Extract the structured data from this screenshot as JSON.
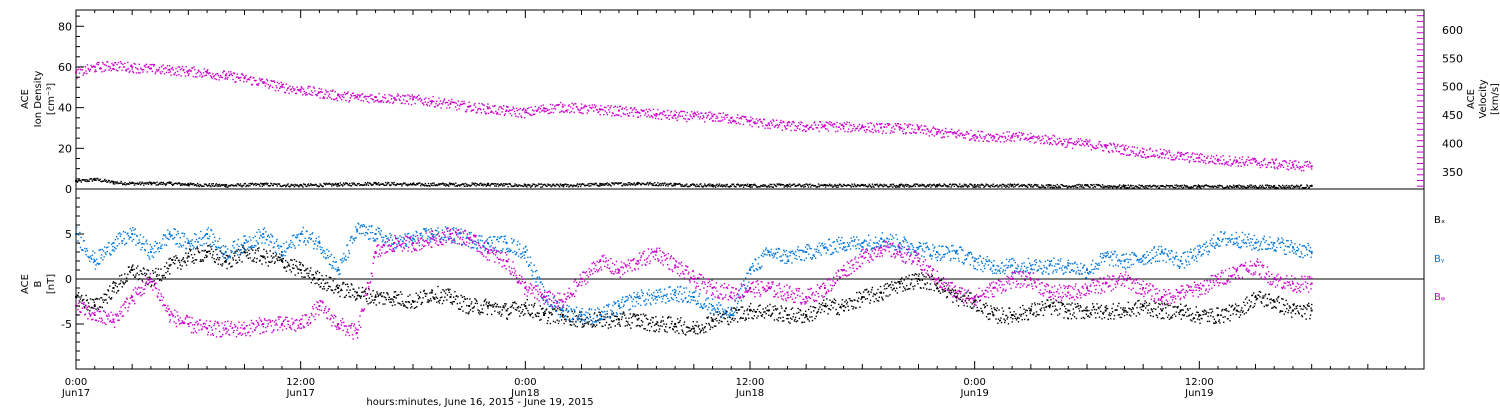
{
  "colors": {
    "density": "#000000",
    "velocity": "#cc00cc",
    "bx": "#000000",
    "by": "#0077dd",
    "bz": "#cc00cc"
  },
  "chart_data": [
    {
      "type": "scatter",
      "panel": "plasma",
      "time_range_hours": [
        0,
        72
      ],
      "left_axis": {
        "label_lines": [
          "ACE",
          "Ion Density",
          "[cm⁻³]"
        ],
        "ylim": [
          0,
          88
        ],
        "ticks": [
          "0",
          "20",
          "40",
          "60",
          "80"
        ]
      },
      "right_axis": {
        "label_lines": [
          "ACE",
          "Velocity",
          "[km/s]"
        ],
        "ylim": [
          320,
          635
        ],
        "ticks": [
          "350",
          "400",
          "450",
          "500",
          "550",
          "600"
        ]
      },
      "series": [
        {
          "key": "density",
          "axis": "left",
          "x": [
            0,
            1,
            2,
            3,
            4,
            5,
            6,
            8,
            10,
            12,
            14,
            16,
            18,
            20,
            22,
            24,
            26,
            28,
            30,
            32,
            34,
            36,
            38,
            40,
            42,
            44,
            46,
            48,
            50,
            52,
            54,
            56,
            58,
            60,
            62,
            64,
            66
          ],
          "y": [
            4,
            5,
            3.5,
            3,
            3,
            3,
            2.5,
            2,
            2.5,
            2,
            2.5,
            3,
            2.5,
            2.5,
            2.5,
            2,
            2,
            2.5,
            3,
            2.5,
            2,
            2,
            2,
            2,
            2,
            2,
            2,
            2,
            2,
            1.8,
            1.8,
            1.5,
            1.5,
            1.5,
            1.5,
            1.5,
            1.5
          ]
        },
        {
          "key": "velocity",
          "axis": "right",
          "x": [
            0,
            1,
            2,
            3,
            4,
            5,
            6,
            7,
            8,
            9,
            10,
            11,
            12,
            13,
            14,
            15,
            16,
            17,
            18,
            19,
            20,
            21,
            22,
            23,
            24,
            25,
            26,
            27,
            28,
            29,
            30,
            31,
            32,
            33,
            34,
            35,
            36,
            37,
            38,
            39,
            40,
            41,
            42,
            43,
            44,
            45,
            46,
            47,
            48,
            49,
            50,
            51,
            52,
            53,
            54,
            55,
            56,
            57,
            58,
            59,
            60,
            61,
            62,
            63,
            64,
            65,
            66
          ],
          "y": [
            525,
            535,
            538,
            535,
            532,
            530,
            528,
            525,
            520,
            515,
            508,
            500,
            495,
            490,
            485,
            482,
            482,
            480,
            478,
            475,
            470,
            465,
            462,
            458,
            455,
            462,
            465,
            462,
            460,
            458,
            455,
            452,
            450,
            448,
            448,
            445,
            440,
            435,
            432,
            430,
            432,
            430,
            430,
            428,
            428,
            425,
            420,
            418,
            415,
            413,
            413,
            410,
            408,
            402,
            400,
            395,
            390,
            385,
            382,
            378,
            375,
            372,
            370,
            368,
            365,
            363,
            360
          ]
        }
      ]
    },
    {
      "type": "scatter",
      "panel": "magnetic",
      "time_range_hours": [
        0,
        72
      ],
      "left_axis": {
        "label_lines": [
          "ACE",
          "B",
          "[nT]"
        ],
        "ylim": [
          -10,
          10
        ],
        "ticks": [
          "-5",
          "0",
          "5"
        ]
      },
      "series": [
        {
          "key": "bx",
          "name": "Bₓ",
          "x": [
            0,
            1,
            2,
            3,
            4,
            5,
            6,
            7,
            8,
            9,
            10,
            11,
            12,
            13,
            14,
            15,
            16,
            17,
            18,
            19,
            20,
            21,
            22,
            23,
            24,
            25,
            26,
            27,
            28,
            29,
            30,
            31,
            32,
            33,
            34,
            35,
            36,
            37,
            38,
            39,
            40,
            41,
            42,
            43,
            44,
            45,
            46,
            47,
            48,
            49,
            50,
            51,
            52,
            53,
            54,
            55,
            56,
            57,
            58,
            59,
            60,
            61,
            62,
            63,
            64,
            65,
            66
          ],
          "y": [
            -2,
            -3,
            -1,
            1,
            0,
            1.5,
            2.5,
            3,
            2,
            3,
            2.5,
            2,
            1,
            0,
            -1,
            -1.5,
            -2,
            -2,
            -2.5,
            -1.5,
            -2,
            -3,
            -3,
            -3.5,
            -3,
            -4,
            -4,
            -4.5,
            -4.5,
            -4.5,
            -4.5,
            -5,
            -5,
            -5.5,
            -4.5,
            -4,
            -3.5,
            -3.5,
            -4,
            -4,
            -3,
            -3,
            -2,
            -1.5,
            -0.5,
            0,
            -0.5,
            -2,
            -2.5,
            -4,
            -4,
            -3.5,
            -3,
            -3.5,
            -3.5,
            -3.5,
            -3.5,
            -3,
            -3.5,
            -3.5,
            -4,
            -4,
            -3.5,
            -2,
            -2.5,
            -3.5,
            -3.5
          ]
        },
        {
          "key": "by",
          "name": "Bᵧ",
          "x": [
            0,
            1,
            2,
            3,
            4,
            5,
            6,
            7,
            8,
            9,
            10,
            11,
            12,
            13,
            14,
            15,
            16,
            17,
            18,
            19,
            20,
            21,
            22,
            23,
            24,
            25,
            26,
            27,
            28,
            29,
            30,
            31,
            32,
            33,
            34,
            35,
            36,
            37,
            38,
            39,
            40,
            41,
            42,
            43,
            44,
            45,
            46,
            47,
            48,
            49,
            50,
            51,
            52,
            53,
            54,
            55,
            56,
            57,
            58,
            59,
            60,
            61,
            62,
            63,
            64,
            65,
            66
          ],
          "y": [
            5,
            2,
            4,
            5,
            3,
            5,
            4,
            5,
            3,
            4,
            5,
            3,
            5,
            4,
            1,
            5.5,
            5,
            4,
            4.5,
            5,
            5,
            4.5,
            4,
            4,
            3,
            -2,
            -3.5,
            -4,
            -4,
            -3,
            -2,
            -2,
            -1.5,
            -2,
            -3,
            -4,
            1,
            3,
            2.5,
            3,
            3.5,
            4,
            4,
            4.5,
            4,
            3.5,
            3,
            3,
            2,
            1.5,
            1.5,
            1.5,
            1.5,
            1.5,
            1,
            2.5,
            2,
            2.5,
            3,
            2,
            3,
            4.5,
            4.5,
            4,
            4,
            3.5,
            3
          ]
        },
        {
          "key": "bz",
          "name": "Bᵩ",
          "x": [
            0,
            1,
            2,
            3,
            4,
            5,
            6,
            7,
            8,
            9,
            10,
            11,
            12,
            13,
            14,
            15,
            16,
            17,
            18,
            19,
            20,
            21,
            22,
            23,
            24,
            25,
            26,
            27,
            28,
            29,
            30,
            31,
            32,
            33,
            34,
            35,
            36,
            37,
            38,
            39,
            40,
            41,
            42,
            43,
            44,
            45,
            46,
            47,
            48,
            49,
            50,
            51,
            52,
            53,
            54,
            55,
            56,
            57,
            58,
            59,
            60,
            61,
            62,
            63,
            64,
            65,
            66
          ],
          "y": [
            -3,
            -4,
            -4.5,
            -2,
            0,
            -4,
            -5,
            -5.5,
            -5.5,
            -5.5,
            -5,
            -5,
            -5,
            -3,
            -5,
            -6,
            3,
            4,
            4,
            4.5,
            5,
            4.5,
            3,
            2,
            -1,
            -2,
            -2.5,
            0,
            2,
            1,
            2,
            3,
            1.5,
            0,
            -1,
            -1.5,
            -1,
            -1,
            -1.5,
            -2,
            -1,
            1,
            2.5,
            3.5,
            3,
            2,
            0,
            -1.5,
            -2,
            -1,
            0,
            0,
            -1.5,
            -1.5,
            -1,
            -0.5,
            0,
            -1,
            -2,
            -1.5,
            -1,
            0,
            1,
            1.5,
            0,
            -0.5,
            -0.5
          ]
        }
      ]
    }
  ],
  "time_axis": {
    "ticks": [
      {
        "hour": 0,
        "time": "0:00",
        "date": "Jun17"
      },
      {
        "hour": 12,
        "time": "12:00",
        "date": "Jun17"
      },
      {
        "hour": 24,
        "time": "0:00",
        "date": "Jun18"
      },
      {
        "hour": 36,
        "time": "12:00",
        "date": "Jun18"
      },
      {
        "hour": 48,
        "time": "0:00",
        "date": "Jun19"
      },
      {
        "hour": 60,
        "time": "12:00",
        "date": "Jun19"
      }
    ],
    "title": "hours:minutes, June 16, 2015 - June 19, 2015"
  },
  "legend": {
    "bx": "Bₓ",
    "by": "Bᵧ",
    "bz": "Bᵩ"
  }
}
